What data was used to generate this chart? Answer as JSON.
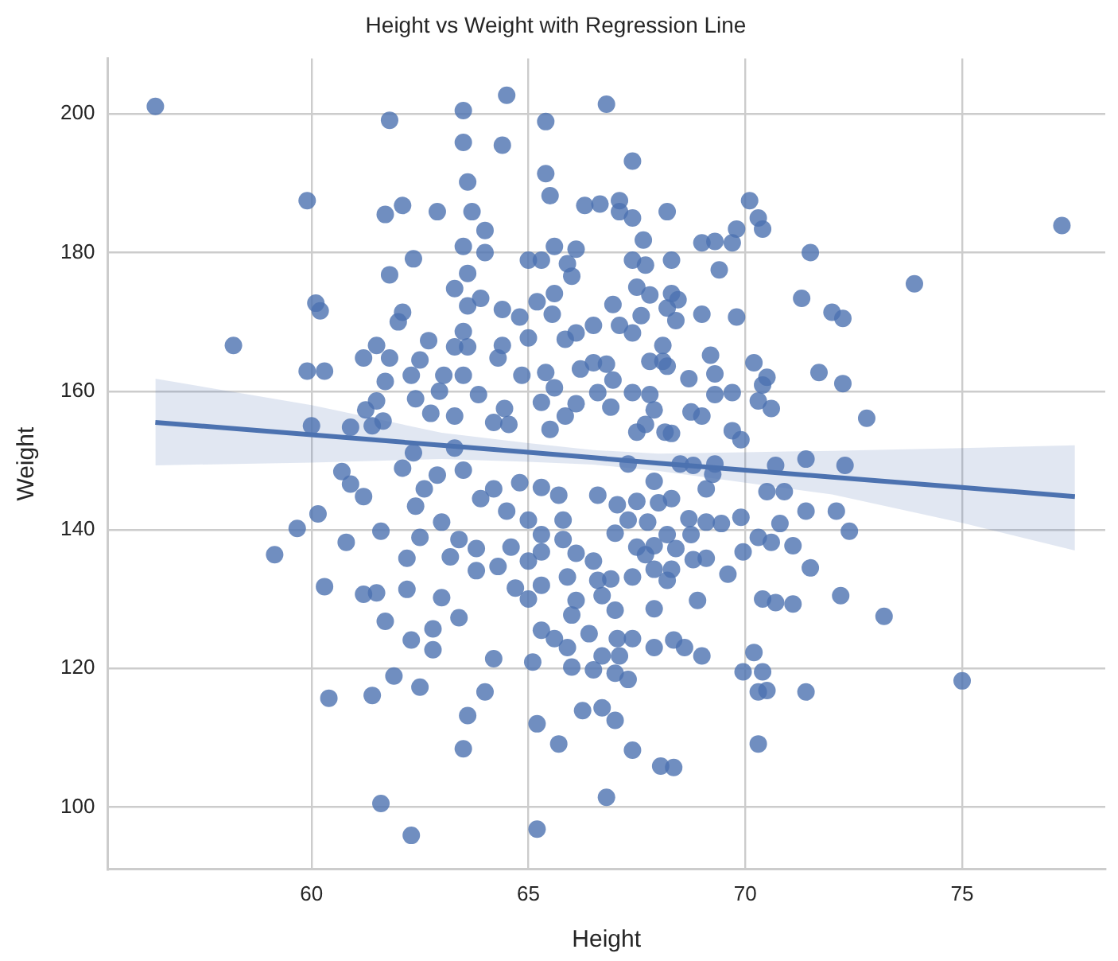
{
  "chart_data": {
    "type": "scatter",
    "title": "Height vs Weight with Regression Line",
    "xlabel": "Height",
    "ylabel": "Weight",
    "xlim": [
      55.3,
      78.3
    ],
    "ylim": [
      91,
      208
    ],
    "xticks": [
      60,
      65,
      70,
      75
    ],
    "yticks": [
      100,
      120,
      140,
      160,
      180,
      200
    ],
    "grid": true,
    "series": [
      {
        "marker": "circle",
        "color": "#4c72b0",
        "x": [
          56.4,
          58.2,
          59.15,
          59.67,
          60.15,
          60.7,
          60.9,
          61.2,
          60.3,
          60.4,
          61.4,
          61.6,
          62.3,
          61.9,
          62.5,
          61.7,
          62.3,
          62.8,
          62.8,
          61.2,
          61.5,
          62.2,
          63.0,
          63.4,
          63.5,
          63.6,
          64.0,
          64.2,
          65.1,
          65.2,
          65.2,
          65.7,
          66.25,
          66.7,
          66.8,
          66.0,
          66.5,
          65.3,
          65.6,
          65.9,
          66.7,
          62.2,
          62.5,
          61.6,
          60.8,
          63.0,
          63.2,
          63.8,
          64.3,
          64.7,
          65.0,
          65.3,
          65.0,
          65.3,
          65.9,
          66.1,
          66.0,
          66.4,
          66.6,
          66.9,
          66.7,
          66.5,
          66.1,
          65.8,
          64.6,
          63.8,
          63.4,
          62.4,
          62.6,
          62.9,
          63.5,
          63.9,
          64.2,
          64.5,
          65.0,
          65.3,
          65.8,
          65.7,
          66.6,
          65.3,
          64.8,
          62.1,
          59.9,
          60.1,
          60.2,
          59.9,
          60.3,
          60.0,
          60.9,
          61.4,
          61.25,
          61.5,
          61.65,
          61.2,
          61.5,
          61.8,
          61.7,
          62.0,
          62.1,
          61.8,
          62.35,
          61.7,
          62.1,
          61.8,
          62.9,
          63.5,
          63.5,
          64.5,
          64.4,
          63.6,
          63.7,
          64.0,
          63.5,
          64.0,
          63.6,
          63.3,
          63.9,
          63.6,
          64.4,
          64.8,
          65.4,
          65.4,
          65.5,
          65.0,
          65.3,
          65.6,
          65.9,
          66.0,
          66.1,
          66.8,
          66.3,
          66.65,
          65.6,
          65.55,
          65.2,
          66.5,
          66.1,
          65.85,
          65.0,
          64.4,
          64.3,
          63.5,
          63.3,
          63.6,
          62.7,
          62.5,
          63.05,
          63.5,
          62.3,
          62.4,
          62.95,
          62.75,
          63.3,
          63.85,
          64.45,
          64.2,
          64.55,
          64.85,
          65.4,
          65.6,
          65.3,
          66.1,
          65.85,
          66.2,
          66.5,
          66.8,
          66.6,
          66.9,
          66.95,
          65.5,
          63.3,
          62.35,
          67.4,
          67.1,
          67.1,
          67.4,
          68.2,
          67.65,
          69.0,
          69.3,
          69.7,
          69.8,
          70.1,
          70.3,
          70.4,
          67.4,
          67.7,
          68.3,
          69.4,
          71.5,
          73.9,
          77.3,
          67.5,
          67.8,
          68.3,
          68.45,
          68.2,
          67.6,
          69.0,
          68.4,
          69.8,
          71.3,
          72.0,
          72.25,
          67.1,
          67.4,
          68.1,
          67.8,
          68.1,
          68.2,
          69.2,
          68.7,
          69.3,
          70.2,
          70.5,
          70.4,
          71.7,
          72.25,
          66.95,
          67.4,
          67.8,
          69.3,
          69.7,
          70.3,
          70.6,
          72.8,
          67.9,
          68.75,
          69.0,
          69.7,
          69.9,
          67.5,
          67.7,
          68.15,
          68.3,
          70.7,
          71.4,
          72.3,
          70.5,
          70.9,
          71.4,
          72.1,
          72.4,
          70.8,
          69.9,
          70.3,
          70.6,
          71.1,
          69.95,
          71.5,
          69.6,
          70.4,
          70.7,
          71.1,
          72.2,
          73.2,
          68.9,
          67.9,
          70.2,
          69.95,
          70.4,
          70.3,
          70.5,
          71.4,
          75.0,
          70.3,
          69.0,
          68.6,
          67.9,
          68.35,
          67.4,
          67.05,
          67.1,
          67.0,
          67.3,
          67.0,
          67.4,
          68.05,
          68.35,
          67.0,
          67.9,
          68.3,
          68.2,
          67.4,
          68.8,
          69.1,
          67.7,
          67.5,
          67.9,
          68.4,
          68.7,
          69.1,
          69.45,
          67.75,
          67.3,
          67.0,
          68.2,
          68.75,
          67.05,
          67.5,
          68.0,
          68.3,
          69.1,
          69.25,
          69.3,
          67.9,
          67.3,
          68.5,
          68.8
        ],
        "values": [
          201.1,
          166.6,
          136.4,
          140.2,
          142.3,
          148.4,
          146.6,
          144.8,
          131.8,
          115.7,
          116.1,
          100.5,
          95.9,
          118.9,
          117.3,
          126.8,
          124.1,
          122.7,
          125.7,
          130.7,
          130.9,
          131.4,
          130.2,
          127.3,
          108.4,
          113.2,
          116.6,
          121.4,
          120.9,
          112.0,
          96.8,
          109.1,
          113.9,
          114.3,
          101.4,
          120.2,
          119.8,
          125.5,
          124.3,
          123.0,
          121.8,
          135.9,
          138.9,
          139.8,
          138.2,
          141.1,
          136.1,
          134.1,
          134.7,
          131.6,
          130.0,
          132.0,
          135.5,
          136.8,
          133.2,
          129.8,
          127.7,
          125.0,
          132.7,
          132.9,
          130.5,
          135.5,
          136.6,
          138.6,
          137.5,
          137.3,
          138.6,
          143.4,
          145.9,
          147.9,
          148.6,
          144.5,
          145.9,
          142.7,
          141.4,
          139.3,
          141.4,
          145.0,
          145.0,
          146.1,
          146.8,
          148.9,
          187.5,
          172.7,
          171.6,
          162.9,
          162.9,
          155.0,
          154.8,
          155.0,
          157.3,
          158.6,
          155.7,
          164.8,
          166.6,
          164.8,
          161.4,
          170.0,
          171.4,
          176.8,
          179.1,
          185.5,
          186.8,
          199.1,
          185.9,
          200.5,
          195.9,
          202.7,
          195.5,
          190.2,
          185.9,
          183.2,
          180.9,
          180.0,
          177.0,
          174.8,
          173.4,
          172.3,
          171.8,
          170.7,
          198.9,
          191.4,
          188.2,
          178.9,
          178.9,
          180.9,
          178.4,
          176.6,
          180.5,
          201.4,
          186.8,
          187.0,
          174.1,
          171.1,
          172.9,
          169.5,
          168.4,
          167.5,
          167.7,
          166.6,
          164.8,
          168.6,
          166.4,
          166.4,
          167.3,
          164.5,
          162.3,
          162.3,
          162.3,
          158.9,
          160.0,
          156.8,
          156.4,
          159.5,
          157.5,
          155.5,
          155.2,
          162.3,
          162.7,
          160.5,
          158.4,
          158.2,
          156.4,
          163.2,
          164.1,
          163.9,
          159.8,
          157.7,
          172.5,
          154.5,
          151.8,
          151.1,
          193.2,
          187.5,
          185.9,
          185.0,
          185.9,
          181.8,
          181.4,
          181.6,
          181.4,
          183.4,
          187.5,
          185.0,
          183.4,
          178.9,
          178.2,
          178.9,
          177.5,
          180.0,
          175.5,
          183.9,
          175.0,
          173.9,
          174.1,
          173.2,
          172.0,
          170.9,
          171.1,
          170.2,
          170.7,
          173.4,
          171.4,
          170.5,
          169.5,
          168.4,
          166.6,
          164.3,
          164.3,
          163.6,
          165.2,
          161.8,
          162.5,
          164.1,
          162.0,
          160.9,
          162.7,
          161.1,
          161.6,
          159.8,
          159.5,
          159.5,
          159.8,
          158.6,
          157.5,
          156.1,
          157.3,
          157.0,
          156.4,
          154.3,
          153.0,
          154.1,
          155.2,
          154.1,
          153.9,
          149.3,
          150.2,
          149.3,
          145.5,
          145.5,
          142.7,
          142.7,
          139.8,
          140.9,
          141.8,
          138.9,
          138.2,
          137.7,
          136.8,
          134.5,
          133.6,
          130.0,
          129.5,
          129.3,
          130.5,
          127.5,
          129.8,
          128.6,
          122.3,
          119.5,
          119.5,
          116.6,
          116.8,
          116.6,
          118.2,
          109.1,
          121.8,
          123.0,
          123.0,
          124.1,
          124.3,
          124.3,
          121.8,
          119.3,
          118.4,
          112.5,
          108.2,
          105.9,
          105.7,
          128.4,
          134.3,
          134.3,
          132.7,
          133.2,
          135.7,
          135.9,
          136.4,
          137.5,
          137.7,
          137.3,
          141.6,
          141.1,
          140.9,
          141.1,
          141.4,
          139.5,
          139.3,
          139.3,
          143.6,
          144.1,
          143.9,
          144.5,
          145.9,
          148.0,
          149.5,
          147.0,
          149.5,
          149.5,
          149.3
        ]
      },
      {
        "type": "line",
        "color": "#4c72b0",
        "x": [
          56.4,
          60,
          63,
          65,
          66.5,
          68,
          70,
          72,
          75,
          77.6
        ],
        "values": [
          155.5,
          153.7,
          152.2,
          151.2,
          150.4,
          149.6,
          148.6,
          147.6,
          146.1,
          144.8
        ],
        "lower": [
          149.3,
          149.7,
          150.2,
          149.8,
          149.4,
          148.5,
          146.8,
          145.1,
          141.0,
          137.0
        ],
        "upper": [
          161.8,
          158.0,
          154.0,
          152.5,
          151.5,
          151.0,
          151.2,
          151.4,
          151.8,
          152.2
        ]
      }
    ]
  }
}
